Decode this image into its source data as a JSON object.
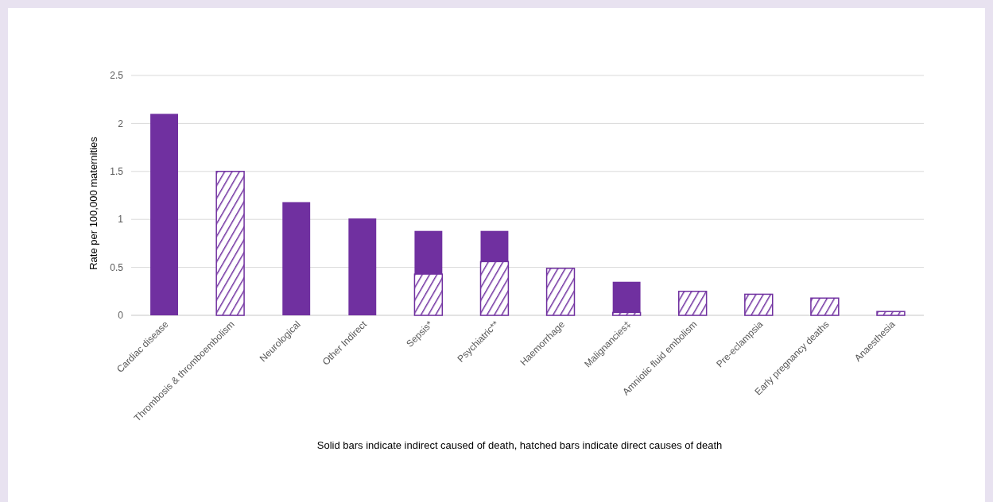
{
  "chart_data": {
    "type": "bar",
    "stacked": true,
    "ylabel": "Rate per 100,000 maternities",
    "xlabel": "Solid bars indicate indirect caused of death, hatched bars indicate direct causes of death",
    "categories": [
      "Cardiac disease",
      "Thrombosis & thromboembolism",
      "Neurological",
      "Other Indirect",
      "Sepsis*",
      "Psychiatric**",
      "Haemorrhage",
      "Malignancies‡",
      "Amniotic fluid embolism",
      "Pre-eclampsia",
      "Early pregnancy deaths",
      "Anaesthesia"
    ],
    "series": [
      {
        "color": "#7030a0",
        "values": [
          null,
          1.5,
          null,
          null,
          0.43,
          0.56,
          0.49,
          0.03,
          0.25,
          0.22,
          0.18,
          0.04
        ]
      },
      {
        "color": "#7030a0",
        "values": [
          2.1,
          null,
          1.18,
          1.01,
          0.45,
          0.32,
          null,
          0.32,
          null,
          null,
          null,
          null
        ]
      }
    ],
    "ylim": [
      0,
      2.5
    ],
    "yticks": [
      0,
      0.5,
      1,
      1.5,
      2,
      2.5
    ],
    "grid": "y"
  }
}
